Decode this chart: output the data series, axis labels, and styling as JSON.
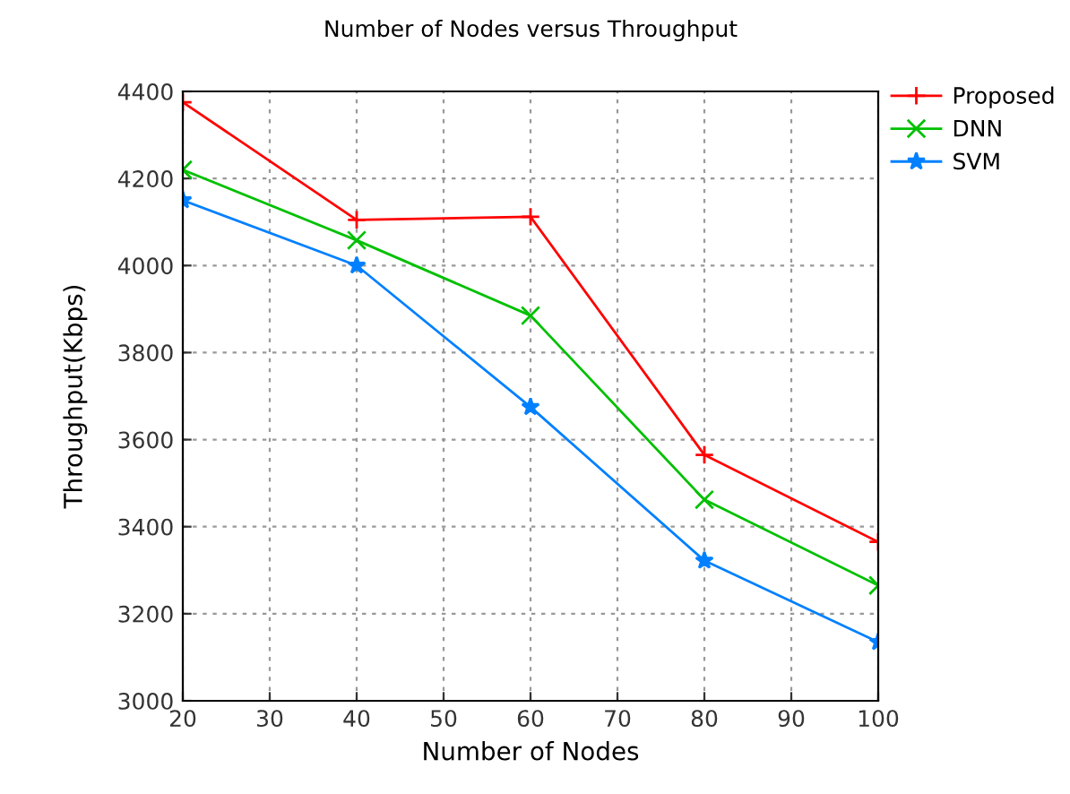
{
  "chart_data": {
    "type": "line",
    "title": "Number of Nodes versus Throughput",
    "xlabel": "Number of Nodes",
    "ylabel": "Throughput(Kbps)",
    "x": [
      20,
      40,
      60,
      80,
      100
    ],
    "series": [
      {
        "name": "Proposed",
        "color": "#ff0000",
        "marker": "plus",
        "values": [
          4375,
          4105,
          4112,
          3565,
          3365
        ]
      },
      {
        "name": "DNN",
        "color": "#00c000",
        "marker": "cross",
        "values": [
          4220,
          4058,
          3885,
          3462,
          3265
        ]
      },
      {
        "name": "SVM",
        "color": "#0080ff",
        "marker": "star",
        "values": [
          4150,
          4000,
          3675,
          3322,
          3135
        ]
      }
    ],
    "xlim": [
      20,
      100
    ],
    "xticks": [
      20,
      30,
      40,
      50,
      60,
      70,
      80,
      90,
      100
    ],
    "ylim": [
      3000,
      4400
    ],
    "yticks": [
      3000,
      3200,
      3400,
      3600,
      3800,
      4000,
      4200,
      4400
    ],
    "grid": true,
    "legend": "top right",
    "line_style": "solid"
  }
}
